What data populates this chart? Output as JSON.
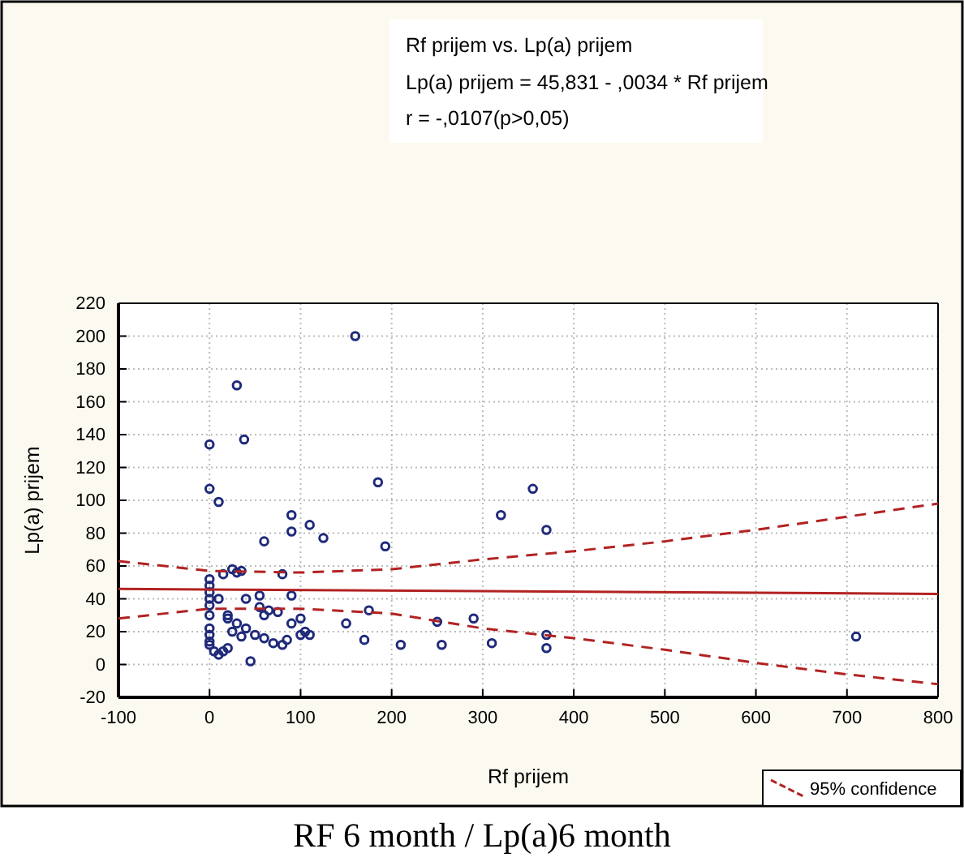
{
  "chart_data": {
    "type": "scatter",
    "title": "Rf prijem vs. Lp(a) prijem",
    "annotations": [
      "Lp(a) prijem = 45,831 - ,0034 * Rf prijem",
      "r = -,0107(p>0,05)",
      "RF 6 month / Lp(a)6 month"
    ],
    "xlabel": "Rf prijem",
    "ylabel": "Lp(a)  prijem",
    "xlim": [
      -100,
      800
    ],
    "xticks": [
      -100,
      0,
      100,
      200,
      300,
      400,
      500,
      600,
      700,
      800
    ],
    "ylim": [
      -20,
      220
    ],
    "yticks": [
      -20,
      0,
      20,
      40,
      60,
      80,
      100,
      120,
      140,
      160,
      180,
      200,
      220
    ],
    "grid": true,
    "legend": "bottom right",
    "series": [
      {
        "marker": "circle",
        "color": "#1f2a7a",
        "x": [
          160,
          30,
          38,
          0,
          0,
          10,
          185,
          355,
          320,
          90,
          110,
          90,
          125,
          60,
          193,
          370,
          0,
          0,
          0,
          0,
          0,
          0,
          0,
          0,
          0,
          0,
          5,
          10,
          15,
          20,
          25,
          30,
          35,
          15,
          10,
          40,
          55,
          75,
          65,
          60,
          80,
          90,
          90,
          100,
          100,
          105,
          110,
          85,
          80,
          70,
          60,
          50,
          45,
          40,
          35,
          30,
          20,
          25,
          150,
          170,
          175,
          210,
          250,
          255,
          290,
          310,
          370,
          370,
          710,
          20,
          55
        ],
        "values": [
          200,
          170,
          137,
          134,
          107,
          99,
          111,
          107,
          91,
          91,
          85,
          81,
          77,
          75,
          72,
          82,
          52,
          48,
          44,
          40,
          36,
          30,
          22,
          18,
          14,
          12,
          8,
          6,
          8,
          10,
          58,
          56,
          57,
          55,
          40,
          40,
          42,
          32,
          33,
          30,
          55,
          42,
          25,
          28,
          18,
          20,
          18,
          15,
          12,
          13,
          16,
          18,
          2,
          22,
          17,
          25,
          30,
          20,
          25,
          15,
          33,
          12,
          26,
          12,
          28,
          13,
          18,
          10,
          17,
          28,
          35
        ]
      },
      {
        "type": "line",
        "color": "#b22222",
        "line_style": "solid",
        "x": [
          -100,
          800
        ],
        "values": [
          46,
          43
        ]
      },
      {
        "type": "line",
        "name": "95% confidence",
        "color": "#b22222",
        "line_style": "dashed",
        "x": [
          -100,
          0,
          100,
          200,
          300,
          400,
          500,
          600,
          700,
          800
        ],
        "values": [
          63,
          57,
          56,
          58,
          64,
          69,
          75,
          82,
          90,
          98
        ]
      },
      {
        "type": "line",
        "color": "#b22222",
        "line_style": "dashed",
        "x": [
          -100,
          0,
          100,
          200,
          300,
          400,
          500,
          600,
          700,
          800
        ],
        "values": [
          28,
          34,
          34,
          31,
          22,
          16,
          9,
          1,
          -6,
          -12
        ]
      }
    ]
  }
}
